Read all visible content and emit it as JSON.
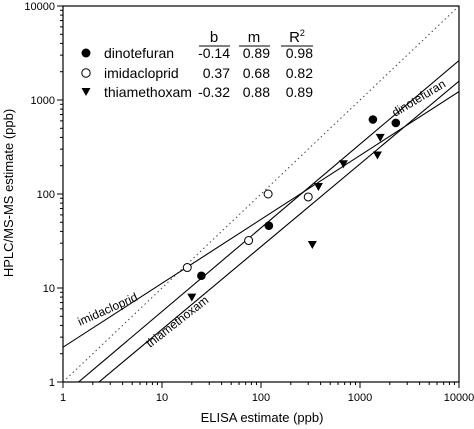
{
  "chart_data": {
    "type": "scatter",
    "xlabel": "ELISA estimate (ppb)",
    "ylabel": "HPLC/MS-MS estimate (ppb)",
    "xscale": "log",
    "yscale": "log",
    "xlim": [
      1,
      10000
    ],
    "ylim": [
      1,
      10000
    ],
    "xticks": [
      "1",
      "10",
      "100",
      "1000",
      "10000"
    ],
    "yticks": [
      "1",
      "10",
      "100",
      "1000",
      "10000"
    ],
    "grid": false,
    "legend_position": "top-left",
    "stats_headers": {
      "b": "b",
      "m": "m",
      "r2": "R",
      "r2_sup": "2"
    },
    "series": [
      {
        "name": "dinotefuran",
        "marker": "filled-circle",
        "b": "-0.14",
        "m": "0.89",
        "r2": "0.98",
        "line_label": "dinotefuran",
        "points": [
          [
            25,
            13.5
          ],
          [
            120,
            46
          ],
          [
            1350,
            620
          ],
          [
            2300,
            570
          ]
        ]
      },
      {
        "name": "imidacloprid",
        "marker": "open-circle",
        "b": "0.37",
        "m": "0.68",
        "r2": "0.82",
        "line_label": "imidacloprid",
        "points": [
          [
            18,
            16.5
          ],
          [
            75,
            32
          ],
          [
            118,
            100
          ],
          [
            300,
            93
          ]
        ]
      },
      {
        "name": "thiamethoxam",
        "marker": "filled-triangle-down",
        "b": "-0.32",
        "m": "0.88",
        "r2": "0.89",
        "line_label": "thiamethoxam",
        "points": [
          [
            20,
            8
          ],
          [
            330,
            29
          ],
          [
            380,
            120
          ],
          [
            680,
            210
          ],
          [
            1500,
            260
          ],
          [
            1600,
            400
          ]
        ]
      }
    ],
    "reference_line": {
      "style": "dotted",
      "slope": 1,
      "intercept": 0
    }
  }
}
